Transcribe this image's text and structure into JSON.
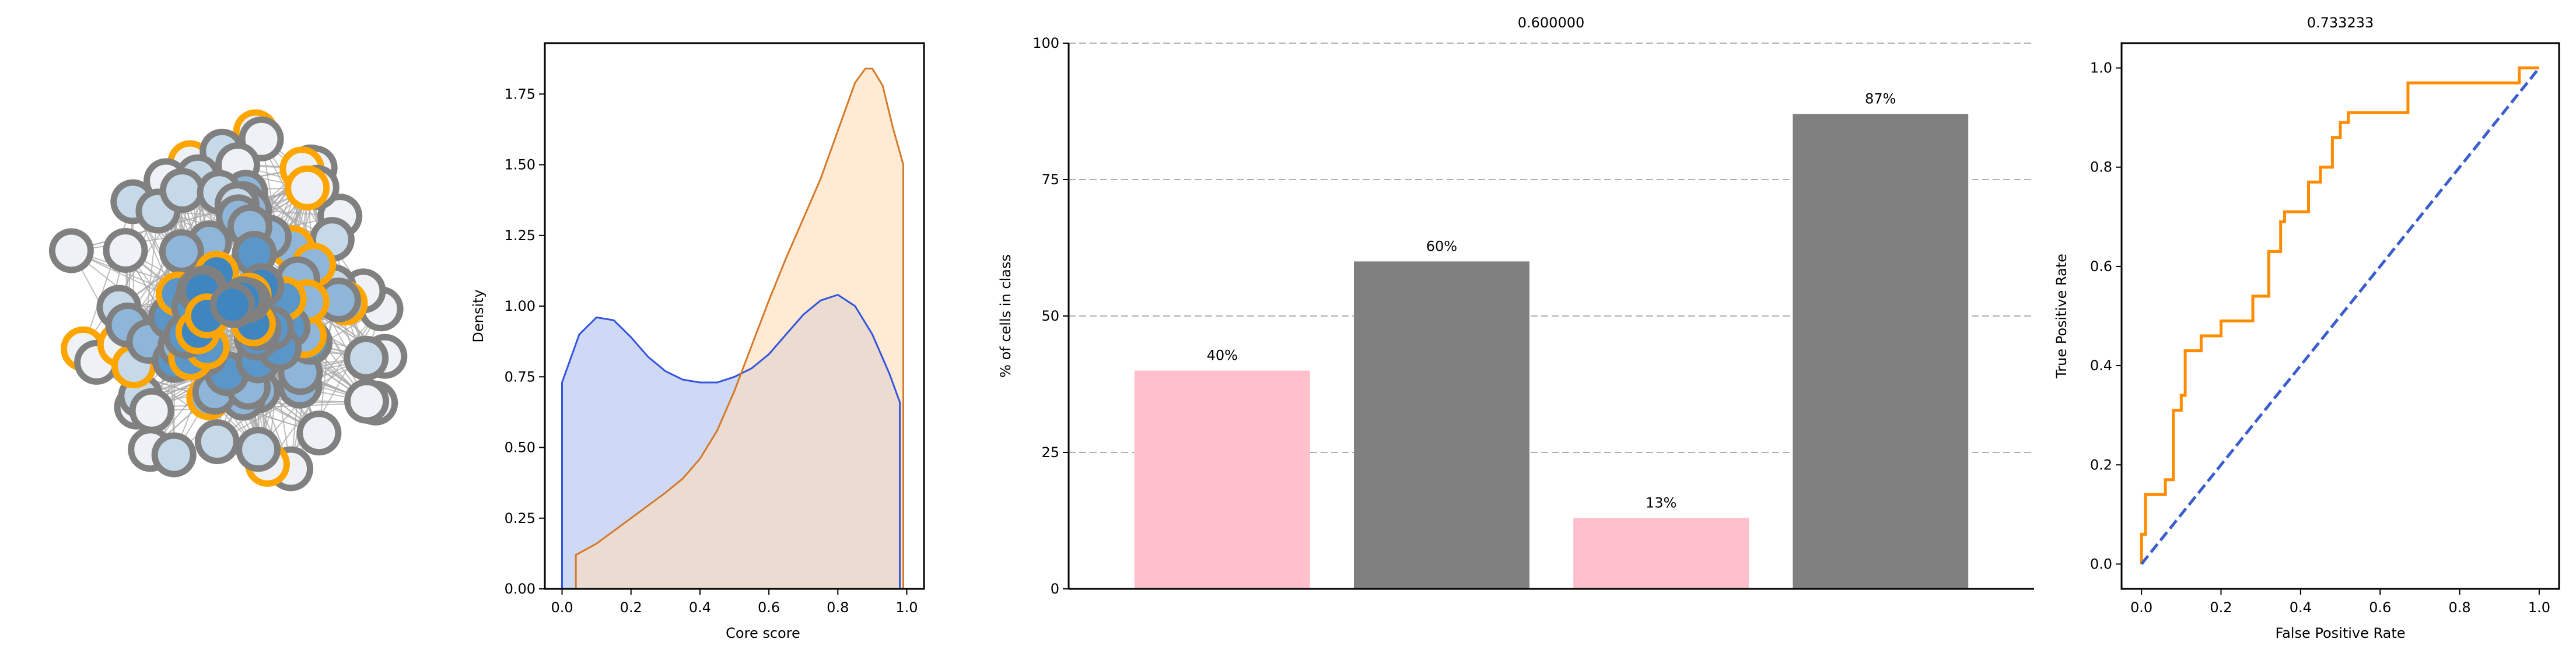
{
  "colors": {
    "node_border_gray": "#808080",
    "node_border_orange": "#ffa500",
    "density_blue": "#3355dd",
    "density_blue_fill": "#cfd9f5",
    "density_orange": "#d47a2a",
    "density_orange_fill": "#ffdcb8",
    "bar_pink": "#ffc0cb",
    "bar_gray": "#808080",
    "roc_orange": "#ff8c00",
    "roc_blue": "#3a5fcd"
  },
  "chart_data": [
    {
      "type": "network",
      "title": "",
      "node_count": 100,
      "highlighted_border_color": "orange",
      "legend": "none"
    },
    {
      "type": "area",
      "title": "",
      "xlabel": "Core score",
      "ylabel": "Density",
      "xlim": [
        -0.05,
        1.05
      ],
      "ylim": [
        0,
        1.93
      ],
      "xticks": [
        "0.0",
        "0.2",
        "0.4",
        "0.6",
        "0.8",
        "1.0"
      ],
      "yticks": [
        "0.00",
        "0.25",
        "0.50",
        "0.75",
        "1.00",
        "1.25",
        "1.50",
        "1.75"
      ],
      "series": [
        {
          "color": "blue",
          "x": [
            0.0,
            0.05,
            0.1,
            0.15,
            0.2,
            0.25,
            0.3,
            0.35,
            0.4,
            0.45,
            0.5,
            0.55,
            0.6,
            0.65,
            0.7,
            0.75,
            0.8,
            0.85,
            0.9,
            0.95,
            0.98
          ],
          "y": [
            0.73,
            0.9,
            0.96,
            0.95,
            0.89,
            0.82,
            0.77,
            0.74,
            0.73,
            0.73,
            0.75,
            0.78,
            0.83,
            0.9,
            0.97,
            1.02,
            1.04,
            1.0,
            0.9,
            0.76,
            0.66
          ]
        },
        {
          "color": "orange",
          "x": [
            0.04,
            0.1,
            0.2,
            0.3,
            0.35,
            0.4,
            0.45,
            0.5,
            0.55,
            0.6,
            0.65,
            0.7,
            0.75,
            0.8,
            0.85,
            0.88,
            0.9,
            0.93,
            0.96,
            0.99
          ],
          "y": [
            0.12,
            0.16,
            0.25,
            0.34,
            0.39,
            0.46,
            0.56,
            0.7,
            0.86,
            1.02,
            1.17,
            1.31,
            1.45,
            1.62,
            1.79,
            1.84,
            1.84,
            1.78,
            1.63,
            1.5
          ]
        }
      ]
    },
    {
      "type": "bar",
      "title": "0.600000",
      "xlabel": "",
      "ylabel": "% of cells in class",
      "ylim": [
        0,
        100
      ],
      "yticks": [
        "0",
        "25",
        "50",
        "75",
        "100"
      ],
      "grid": "horizontal dashed",
      "values": [
        40,
        60,
        13,
        87
      ],
      "value_labels": [
        "40%",
        "60%",
        "13%",
        "87%"
      ],
      "bar_colors": [
        "pink",
        "gray",
        "pink",
        "gray"
      ]
    },
    {
      "type": "line",
      "title": "0.733233",
      "xlabel": "False Positive Rate",
      "ylabel": "True Positive Rate",
      "xlim": [
        -0.05,
        1.05
      ],
      "ylim": [
        -0.05,
        1.05
      ],
      "xticks": [
        "0.0",
        "0.2",
        "0.4",
        "0.6",
        "0.8",
        "1.0"
      ],
      "yticks": [
        "0.0",
        "0.2",
        "0.4",
        "0.6",
        "0.8",
        "1.0"
      ],
      "series": [
        {
          "style": "solid orange step",
          "x": [
            0.0,
            0.0,
            0.01,
            0.01,
            0.06,
            0.06,
            0.08,
            0.08,
            0.1,
            0.1,
            0.11,
            0.11,
            0.15,
            0.15,
            0.2,
            0.2,
            0.28,
            0.28,
            0.32,
            0.32,
            0.35,
            0.35,
            0.36,
            0.36,
            0.42,
            0.42,
            0.45,
            0.45,
            0.48,
            0.48,
            0.5,
            0.5,
            0.52,
            0.52,
            0.67,
            0.67,
            0.95,
            0.95,
            1.0
          ],
          "y": [
            0.0,
            0.06,
            0.06,
            0.14,
            0.14,
            0.17,
            0.17,
            0.31,
            0.31,
            0.34,
            0.34,
            0.43,
            0.43,
            0.46,
            0.46,
            0.49,
            0.49,
            0.54,
            0.54,
            0.63,
            0.63,
            0.69,
            0.69,
            0.71,
            0.71,
            0.77,
            0.77,
            0.8,
            0.8,
            0.86,
            0.86,
            0.89,
            0.89,
            0.91,
            0.91,
            0.97,
            0.97,
            1.0,
            1.0
          ]
        },
        {
          "style": "dashed blue diagonal",
          "x": [
            0.0,
            1.0
          ],
          "y": [
            0.0,
            1.0
          ]
        }
      ]
    }
  ]
}
